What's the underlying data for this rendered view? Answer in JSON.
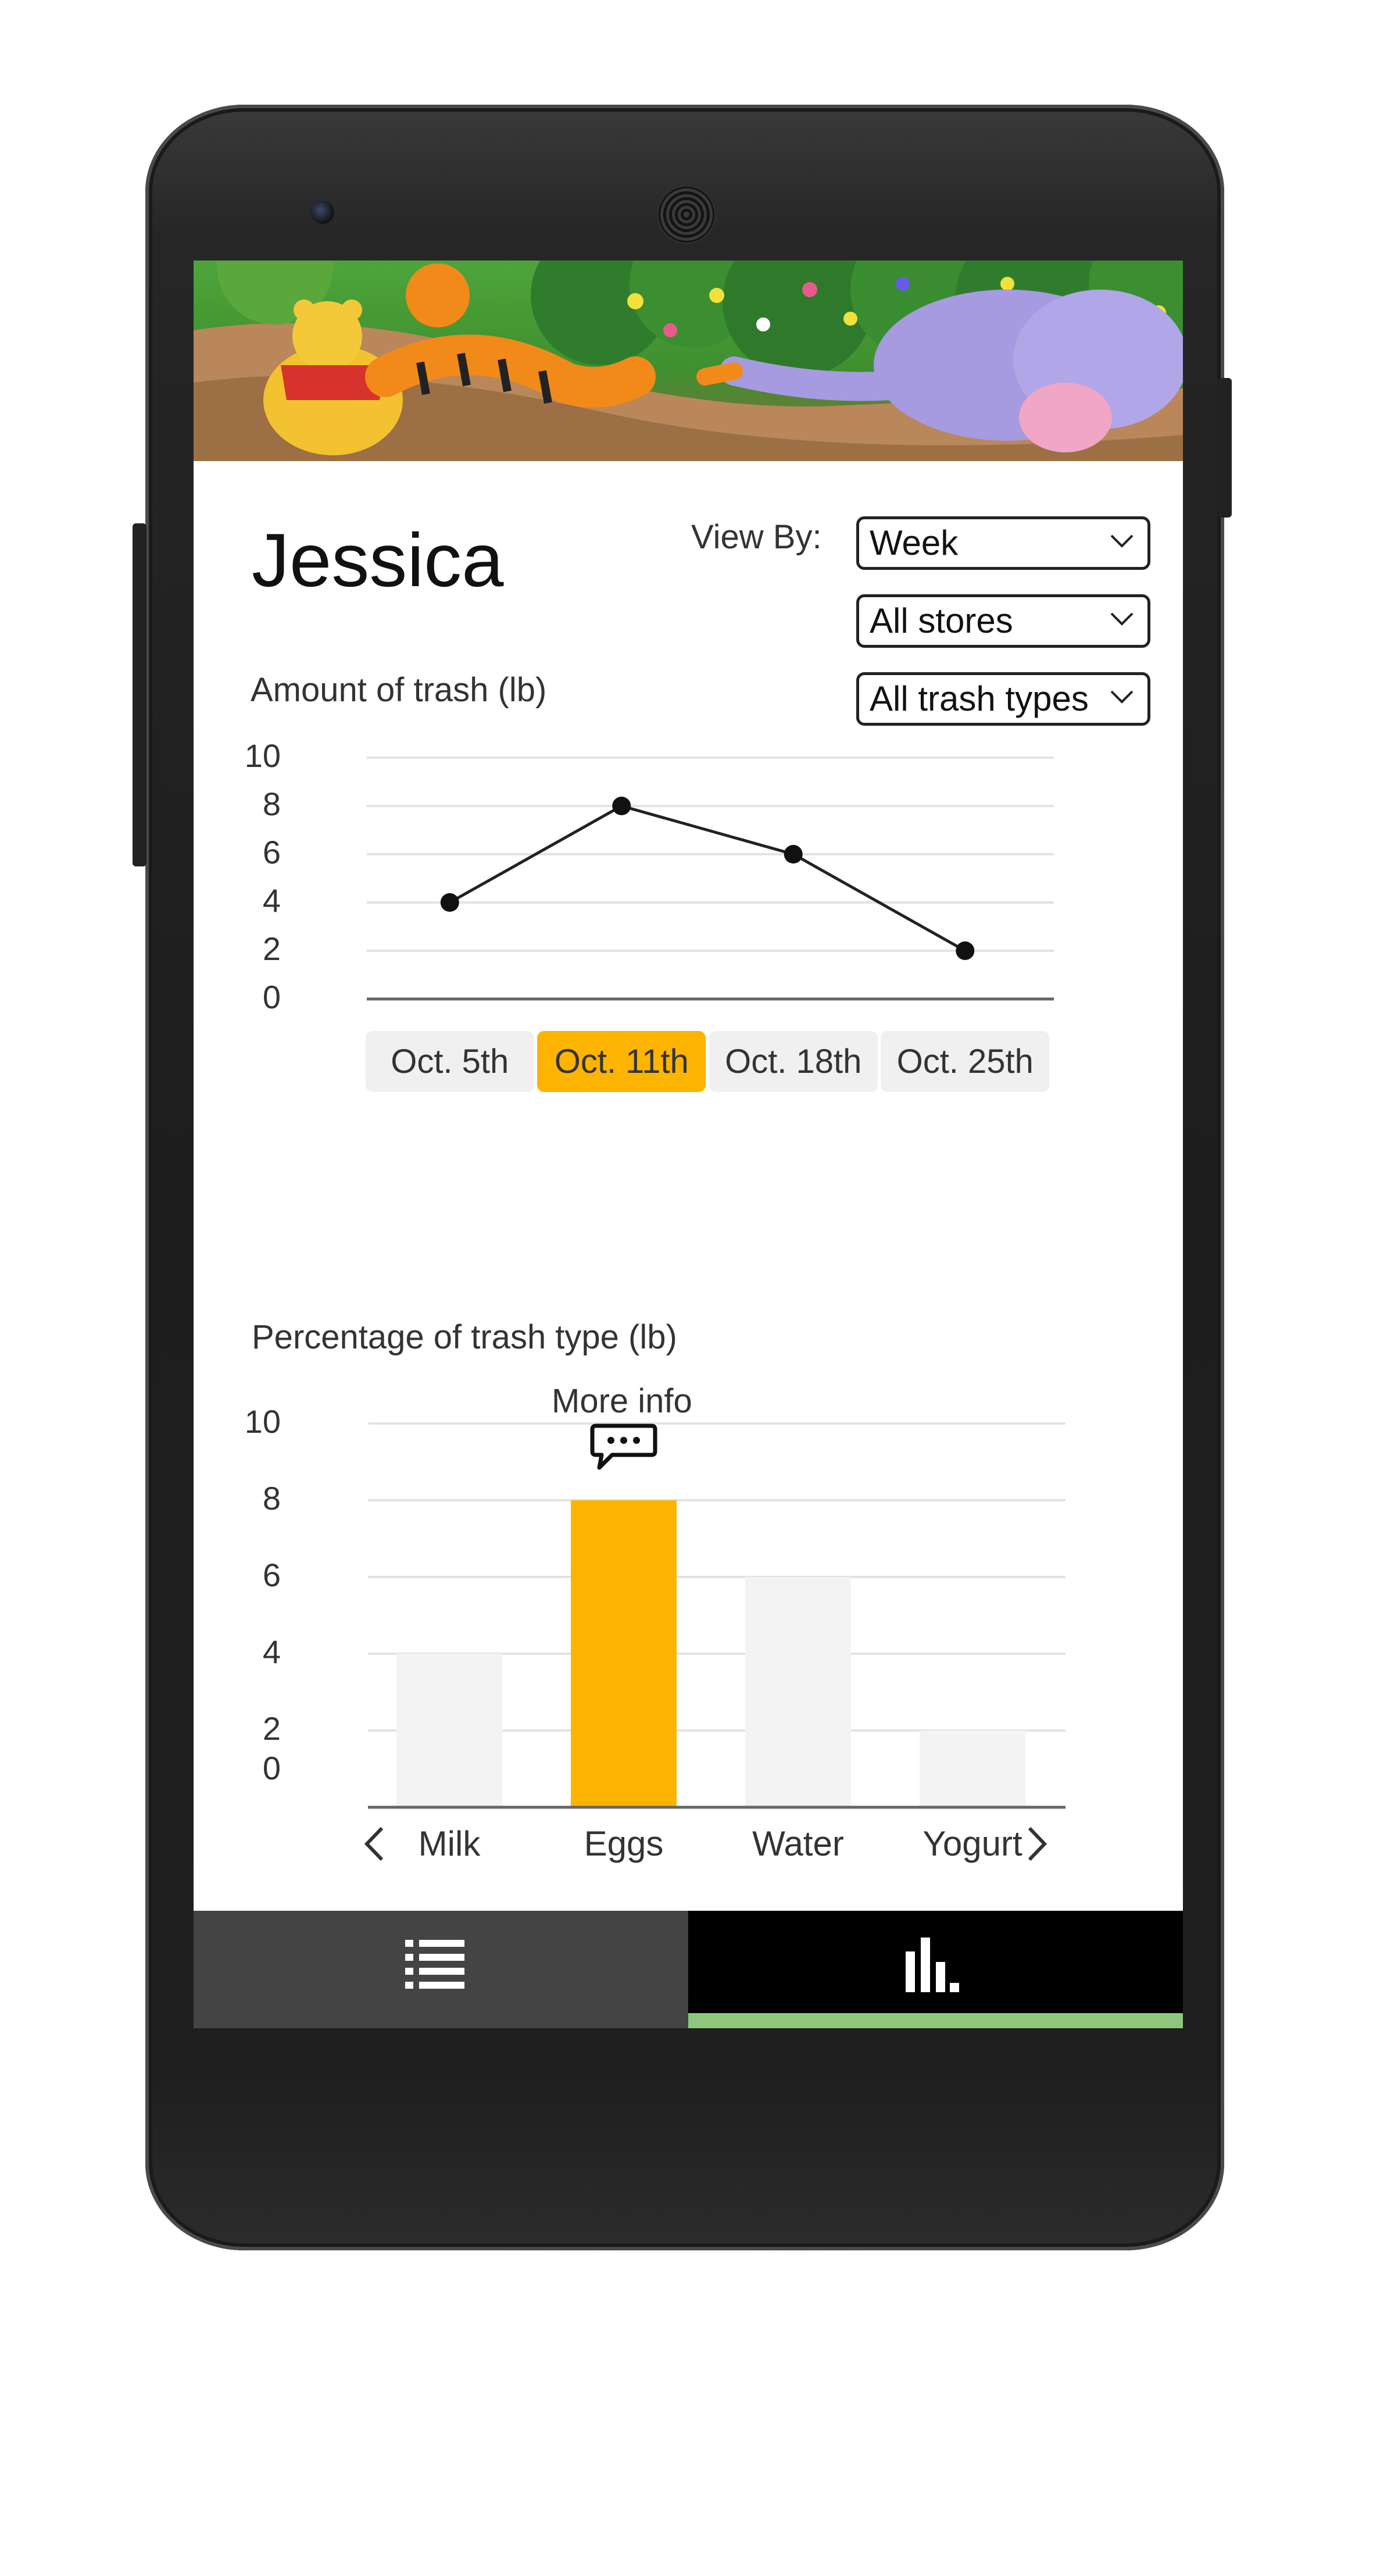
{
  "header": {
    "user_name": "Jessica",
    "view_by_label": "View By:"
  },
  "filters": {
    "period": "Week",
    "store": "All stores",
    "trash_type": "All trash types"
  },
  "chart_data": [
    {
      "type": "line",
      "title": "Amount of trash (lb)",
      "categories": [
        "Oct. 5th",
        "Oct. 11th",
        "Oct. 18th",
        "Oct. 25th"
      ],
      "values": [
        4,
        8,
        6,
        2
      ],
      "yticks": [
        "10",
        "8",
        "6",
        "4",
        "2",
        "0"
      ],
      "ylim": [
        0,
        10
      ],
      "selected_category": "Oct. 11th",
      "grid": true,
      "highlight_color": "#fcb400"
    },
    {
      "type": "bar",
      "title": "Percentage of trash type (lb)",
      "categories": [
        "Milk",
        "Eggs",
        "Water",
        "Yogurt"
      ],
      "values": [
        4,
        8,
        6,
        2
      ],
      "yticks": [
        "10",
        "8",
        "6",
        "4",
        "2",
        "0"
      ],
      "ylim": [
        0,
        10
      ],
      "selected_category": "Eggs",
      "annotation": "More info",
      "grid": true,
      "highlight_color": "#fcb400",
      "bar_color": "#f3f3f3"
    }
  ],
  "nav": {
    "tabs": [
      {
        "icon": "list-icon",
        "active": false
      },
      {
        "icon": "bar-chart-icon",
        "active": true
      }
    ],
    "active_color": "#8dc77b"
  },
  "icons": {
    "prev": "chevron-left-icon",
    "next": "chevron-right-icon",
    "more_info": "speech-bubble-icon",
    "dropdown": "chevron-down-icon"
  }
}
